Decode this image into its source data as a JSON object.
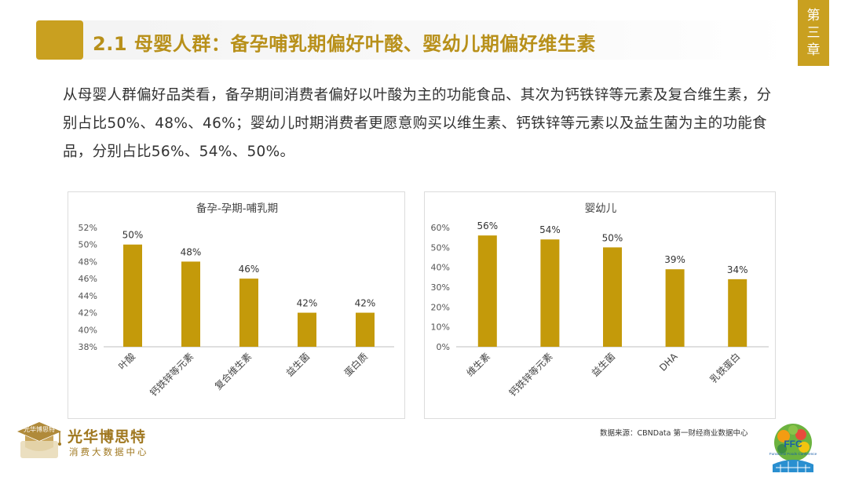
{
  "header": {
    "title": "2.1 母婴人群：备孕哺乳期偏好叶酸、婴幼儿期偏好维生素",
    "chapter_lines": [
      "第",
      "三",
      "章"
    ]
  },
  "intro": {
    "text": "从母婴人群偏好品类看，备孕期间消费者偏好以叶酸为主的功能食品、其次为钙铁锌等元素及复合维生素，分别占比50%、48%、46%；婴幼儿时期消费者更愿意购买以维生素、钙铁锌等元素以及益生菌为主的功能食品，分别占比56%、54%、50%。"
  },
  "colors": {
    "bar": "#c49a0a",
    "accent": "#c9a020",
    "brand": "#a07820"
  },
  "chart_data": [
    {
      "type": "bar",
      "title": "备孕-孕期-哺乳期",
      "categories": [
        "叶酸",
        "钙铁锌等元素",
        "复合维生素",
        "益生菌",
        "蛋白质"
      ],
      "values": [
        50,
        48,
        46,
        42,
        42
      ],
      "data_labels": [
        "50%",
        "48%",
        "46%",
        "42%",
        "42%"
      ],
      "ylim": [
        38,
        52
      ],
      "yticks": [
        "38%",
        "40%",
        "42%",
        "44%",
        "46%",
        "48%",
        "50%",
        "52%"
      ],
      "grid": false,
      "legend": false
    },
    {
      "type": "bar",
      "title": "婴幼儿",
      "categories": [
        "维生素",
        "钙铁锌等元素",
        "益生菌",
        "DHA",
        "乳铁蛋白"
      ],
      "values": [
        56,
        54,
        50,
        39,
        34
      ],
      "data_labels": [
        "56%",
        "54%",
        "50%",
        "39%",
        "34%"
      ],
      "ylim": [
        0,
        60
      ],
      "yticks": [
        "0%",
        "10%",
        "20%",
        "30%",
        "40%",
        "50%",
        "60%"
      ],
      "grid": false,
      "legend": false
    }
  ],
  "footer": {
    "source": "数据来源：CBNData 第一财经商业数据中心",
    "brand_name": "光华博思特",
    "brand_sub": "消费大数据中心",
    "cap_text": "光华博思特",
    "ffc_text": "FFC",
    "ffc_sub": "Functional Foods Conference"
  }
}
